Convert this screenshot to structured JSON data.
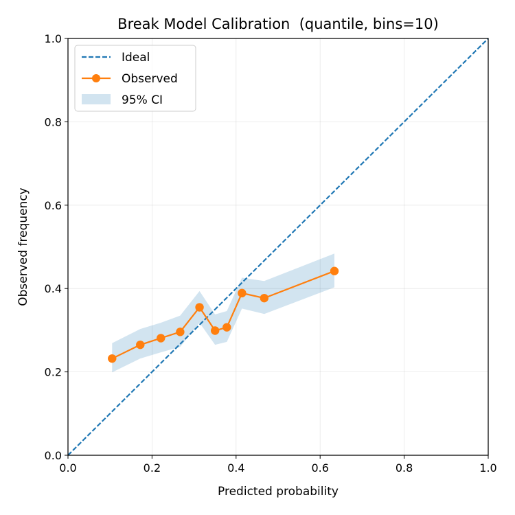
{
  "chart_data": {
    "type": "line",
    "title": "Break Model Calibration  (quantile, bins=10)",
    "xlabel": "Predicted probability",
    "ylabel": "Observed frequency",
    "xlim": [
      0.0,
      1.0
    ],
    "ylim": [
      0.0,
      1.0
    ],
    "x_ticks": [
      "0.0",
      "0.2",
      "0.4",
      "0.6",
      "0.8",
      "1.0"
    ],
    "y_ticks": [
      "0.0",
      "0.2",
      "0.4",
      "0.6",
      "0.8",
      "1.0"
    ],
    "grid": true,
    "legend_position": "upper-left",
    "series": [
      {
        "name": "Ideal",
        "kind": "line",
        "style": "dashed",
        "color": "#1f77b4",
        "x": [
          0.0,
          1.0
        ],
        "y": [
          0.0,
          1.0
        ]
      },
      {
        "name": "Observed",
        "kind": "line-markers",
        "color": "#ff7f0e",
        "x": [
          0.105,
          0.172,
          0.221,
          0.267,
          0.313,
          0.35,
          0.378,
          0.414,
          0.467,
          0.634
        ],
        "y": [
          0.232,
          0.265,
          0.281,
          0.296,
          0.355,
          0.299,
          0.307,
          0.389,
          0.377,
          0.442
        ]
      },
      {
        "name": "95% CI",
        "kind": "band",
        "color": "#1f77b4",
        "opacity": 0.2,
        "x": [
          0.105,
          0.172,
          0.221,
          0.267,
          0.313,
          0.35,
          0.378,
          0.414,
          0.467,
          0.634
        ],
        "lower": [
          0.199,
          0.232,
          0.247,
          0.26,
          0.318,
          0.265,
          0.272,
          0.352,
          0.339,
          0.403
        ],
        "upper": [
          0.269,
          0.303,
          0.318,
          0.335,
          0.394,
          0.338,
          0.346,
          0.426,
          0.418,
          0.484
        ]
      }
    ]
  }
}
